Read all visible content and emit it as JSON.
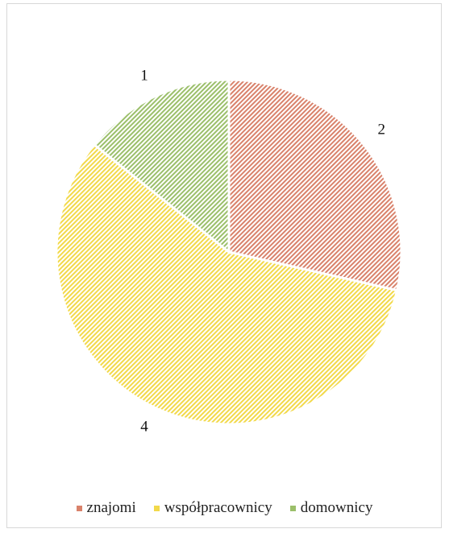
{
  "chart_data": {
    "type": "pie",
    "categories": [
      "znajomi",
      "współpracownicy",
      "domownicy"
    ],
    "values": [
      2,
      4,
      1
    ],
    "data_labels": [
      "2",
      "4",
      "1"
    ],
    "colors": [
      "#d9826b",
      "#f2d94a",
      "#9bbf6a"
    ],
    "start_angle_deg": 0,
    "direction": "clockwise",
    "fill_pattern": "diagonal-hatch",
    "legend_position": "bottom",
    "title": ""
  }
}
